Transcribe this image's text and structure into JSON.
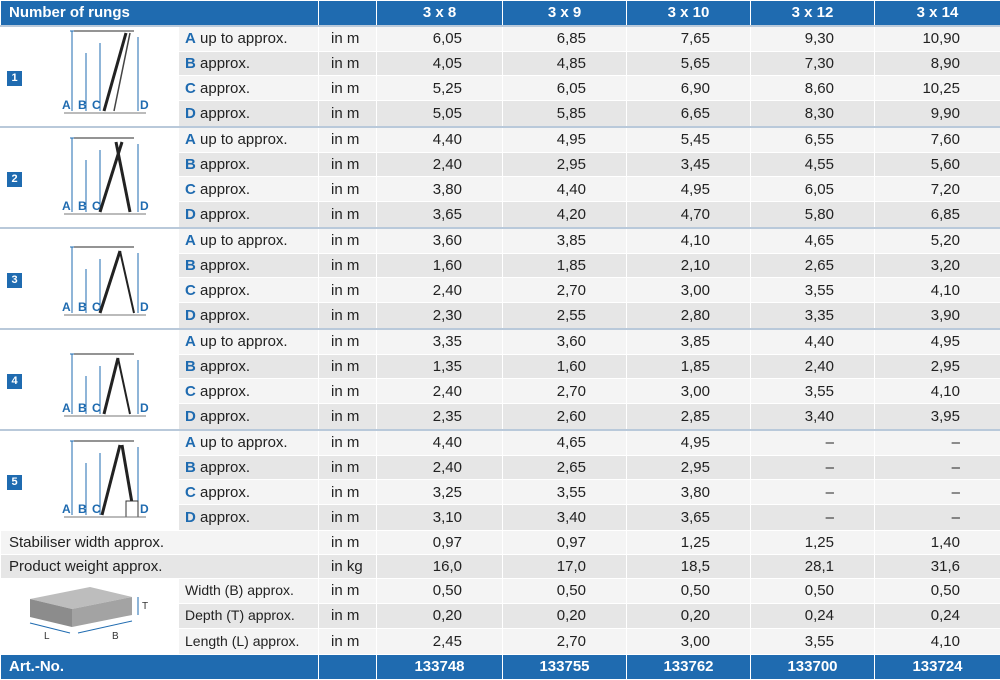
{
  "header": {
    "title": "Number of rungs",
    "columns": [
      "3 x 8",
      "3 x 9",
      "3 x 10",
      "3 x 12",
      "3 x 14"
    ]
  },
  "groups": [
    {
      "badge": "1",
      "rows": [
        {
          "letter": "A",
          "label": "up to approx.",
          "unit": "in m",
          "values": [
            "6,05",
            "6,85",
            "7,65",
            "9,30",
            "10,90"
          ]
        },
        {
          "letter": "B",
          "label": "approx.",
          "unit": "in m",
          "values": [
            "4,05",
            "4,85",
            "5,65",
            "7,30",
            "8,90"
          ]
        },
        {
          "letter": "C",
          "label": "approx.",
          "unit": "in m",
          "values": [
            "5,25",
            "6,05",
            "6,90",
            "8,60",
            "10,25"
          ]
        },
        {
          "letter": "D",
          "label": "approx.",
          "unit": "in m",
          "values": [
            "5,05",
            "5,85",
            "6,65",
            "8,30",
            "9,90"
          ]
        }
      ]
    },
    {
      "badge": "2",
      "rows": [
        {
          "letter": "A",
          "label": "up to approx.",
          "unit": "in m",
          "values": [
            "4,40",
            "4,95",
            "5,45",
            "6,55",
            "7,60"
          ]
        },
        {
          "letter": "B",
          "label": "approx.",
          "unit": "in m",
          "values": [
            "2,40",
            "2,95",
            "3,45",
            "4,55",
            "5,60"
          ]
        },
        {
          "letter": "C",
          "label": "approx.",
          "unit": "in m",
          "values": [
            "3,80",
            "4,40",
            "4,95",
            "6,05",
            "7,20"
          ]
        },
        {
          "letter": "D",
          "label": "approx.",
          "unit": "in m",
          "values": [
            "3,65",
            "4,20",
            "4,70",
            "5,80",
            "6,85"
          ]
        }
      ]
    },
    {
      "badge": "3",
      "rows": [
        {
          "letter": "A",
          "label": "up to approx.",
          "unit": "in m",
          "values": [
            "3,60",
            "3,85",
            "4,10",
            "4,65",
            "5,20"
          ]
        },
        {
          "letter": "B",
          "label": "approx.",
          "unit": "in m",
          "values": [
            "1,60",
            "1,85",
            "2,10",
            "2,65",
            "3,20"
          ]
        },
        {
          "letter": "C",
          "label": "approx.",
          "unit": "in m",
          "values": [
            "2,40",
            "2,70",
            "3,00",
            "3,55",
            "4,10"
          ]
        },
        {
          "letter": "D",
          "label": "approx.",
          "unit": "in m",
          "values": [
            "2,30",
            "2,55",
            "2,80",
            "3,35",
            "3,90"
          ]
        }
      ]
    },
    {
      "badge": "4",
      "rows": [
        {
          "letter": "A",
          "label": "up to approx.",
          "unit": "in m",
          "values": [
            "3,35",
            "3,60",
            "3,85",
            "4,40",
            "4,95"
          ]
        },
        {
          "letter": "B",
          "label": "approx.",
          "unit": "in m",
          "values": [
            "1,35",
            "1,60",
            "1,85",
            "2,40",
            "2,95"
          ]
        },
        {
          "letter": "C",
          "label": "approx.",
          "unit": "in m",
          "values": [
            "2,40",
            "2,70",
            "3,00",
            "3,55",
            "4,10"
          ]
        },
        {
          "letter": "D",
          "label": "approx.",
          "unit": "in m",
          "values": [
            "2,35",
            "2,60",
            "2,85",
            "3,40",
            "3,95"
          ]
        }
      ]
    },
    {
      "badge": "5",
      "rows": [
        {
          "letter": "A",
          "label": "up to approx.",
          "unit": "in m",
          "values": [
            "4,40",
            "4,65",
            "4,95",
            "–",
            "–"
          ]
        },
        {
          "letter": "B",
          "label": "approx.",
          "unit": "in m",
          "values": [
            "2,40",
            "2,65",
            "2,95",
            "–",
            "–"
          ]
        },
        {
          "letter": "C",
          "label": "approx.",
          "unit": "in m",
          "values": [
            "3,25",
            "3,55",
            "3,80",
            "–",
            "–"
          ]
        },
        {
          "letter": "D",
          "label": "approx.",
          "unit": "in m",
          "values": [
            "3,10",
            "3,40",
            "3,65",
            "–",
            "–"
          ]
        }
      ]
    }
  ],
  "diagram_letters": [
    "A",
    "B",
    "C",
    "D"
  ],
  "stabiliser": {
    "label": "Stabiliser width approx.",
    "unit": "in m",
    "values": [
      "0,97",
      "0,97",
      "1,25",
      "1,25",
      "1,40"
    ]
  },
  "weight": {
    "label": "Product weight approx.",
    "unit": "in kg",
    "values": [
      "16,0",
      "17,0",
      "18,5",
      "28,1",
      "31,6"
    ]
  },
  "packaging": {
    "box_labels": {
      "t": "T",
      "l": "L",
      "b": "B"
    },
    "rows": [
      {
        "label": "Width (B) approx.",
        "unit": "in m",
        "values": [
          "0,50",
          "0,50",
          "0,50",
          "0,50",
          "0,50"
        ]
      },
      {
        "label": "Depth (T) approx.",
        "unit": "in m",
        "values": [
          "0,20",
          "0,20",
          "0,20",
          "0,24",
          "0,24"
        ]
      },
      {
        "label": "Length (L) approx.",
        "unit": "in m",
        "values": [
          "2,45",
          "2,70",
          "3,00",
          "3,55",
          "4,10"
        ]
      }
    ]
  },
  "footer": {
    "label": "Art.-No.",
    "values": [
      "133748",
      "133755",
      "133762",
      "133700",
      "133724"
    ]
  },
  "colors": {
    "accent": "#1f6bb0",
    "row_dark": "#e6e6e6",
    "row_light": "#f4f4f4"
  }
}
